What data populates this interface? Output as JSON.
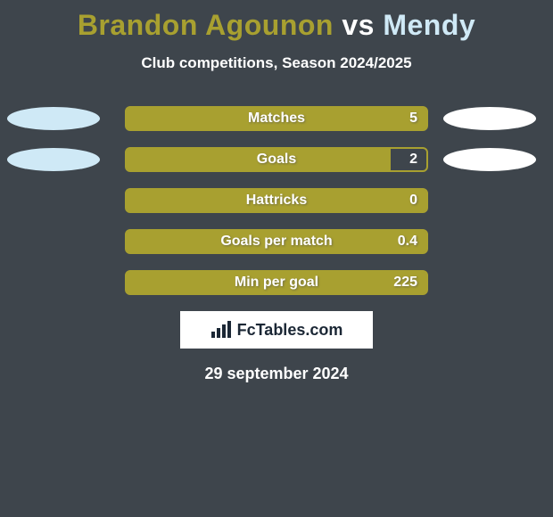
{
  "colors": {
    "background": "#3e454c",
    "title_p1": "#a8a030",
    "title_vs": "#ffffff",
    "title_p2": "#cfe9f6",
    "subtitle": "#ffffff",
    "bar_border": "#a8a030",
    "bar_fill": "#a8a030",
    "bar_label": "#ffffff",
    "bar_value": "#ffffff",
    "marker_left": "#cfe9f6",
    "marker_right": "#ffffff",
    "branding_bg": "#ffffff",
    "branding_text": "#1b2735",
    "date": "#ffffff"
  },
  "title": {
    "player1": "Brandon Agounon",
    "vs": "vs",
    "player2": "Mendy"
  },
  "subtitle": "Club competitions, Season 2024/2025",
  "stats": [
    {
      "label": "Matches",
      "value": "5",
      "fill_pct": 100,
      "left_marker": true,
      "right_marker": true
    },
    {
      "label": "Goals",
      "value": "2",
      "fill_pct": 88,
      "left_marker": true,
      "right_marker": true
    },
    {
      "label": "Hattricks",
      "value": "0",
      "fill_pct": 100,
      "left_marker": false,
      "right_marker": false
    },
    {
      "label": "Goals per match",
      "value": "0.4",
      "fill_pct": 100,
      "left_marker": false,
      "right_marker": false
    },
    {
      "label": "Min per goal",
      "value": "225",
      "fill_pct": 100,
      "left_marker": false,
      "right_marker": false
    }
  ],
  "branding": "FcTables.com",
  "date": "29 september 2024"
}
